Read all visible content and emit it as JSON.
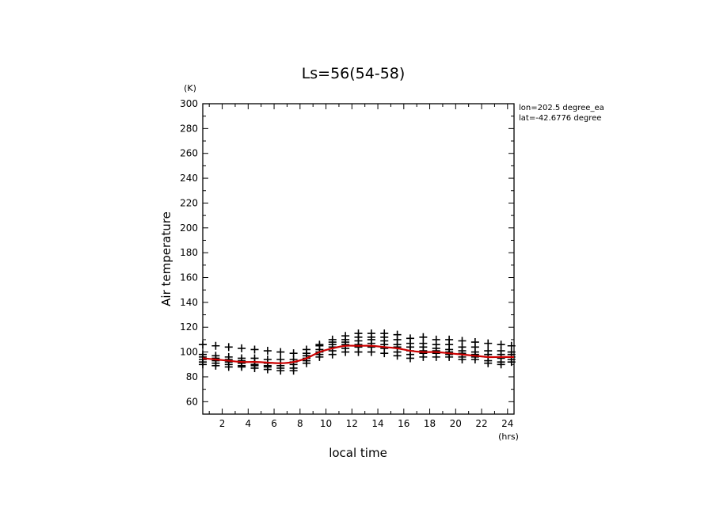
{
  "chart_data": {
    "type": "scatter",
    "title": "Ls=56(54-58)",
    "xlabel": "local time",
    "ylabel": "Air temperature",
    "x_unit": "(hrs)",
    "y_unit": "(K)",
    "xlim": [
      0.5,
      24.5
    ],
    "ylim": [
      50,
      300
    ],
    "x_ticks": [
      2,
      4,
      6,
      8,
      10,
      12,
      14,
      16,
      18,
      20,
      22,
      24
    ],
    "y_ticks": [
      60,
      80,
      100,
      120,
      140,
      160,
      180,
      200,
      220,
      240,
      260,
      280,
      300
    ],
    "grid": false,
    "annotations": [
      "lon=202.5 degree_ea",
      "lat=-42.6776 degree"
    ],
    "series": [
      {
        "marker": "+",
        "color": "#000000",
        "x": [
          0.5,
          0.5,
          0.5,
          0.5,
          0.5,
          0.5,
          1.5,
          1.5,
          1.5,
          1.5,
          1.5,
          1.5,
          2.5,
          2.5,
          2.5,
          2.5,
          2.5,
          2.5,
          3.5,
          3.5,
          3.5,
          3.5,
          3.5,
          3.5,
          4.5,
          4.5,
          4.5,
          4.5,
          4.5,
          4.5,
          5.5,
          5.5,
          5.5,
          5.5,
          5.5,
          5.5,
          6.5,
          6.5,
          6.5,
          6.5,
          6.5,
          6.5,
          7.5,
          7.5,
          7.5,
          7.5,
          7.5,
          7.5,
          8.5,
          8.5,
          8.5,
          8.5,
          8.5,
          8.5,
          9.5,
          9.5,
          9.5,
          9.5,
          9.5,
          9.5,
          10.5,
          10.5,
          10.5,
          10.5,
          10.5,
          10.5,
          11.5,
          11.5,
          11.5,
          11.5,
          11.5,
          11.5,
          12.5,
          12.5,
          12.5,
          12.5,
          12.5,
          12.5,
          13.5,
          13.5,
          13.5,
          13.5,
          13.5,
          13.5,
          14.5,
          14.5,
          14.5,
          14.5,
          14.5,
          14.5,
          15.5,
          15.5,
          15.5,
          15.5,
          15.5,
          15.5,
          16.5,
          16.5,
          16.5,
          16.5,
          16.5,
          16.5,
          17.5,
          17.5,
          17.5,
          17.5,
          17.5,
          17.5,
          18.5,
          18.5,
          18.5,
          18.5,
          18.5,
          18.5,
          19.5,
          19.5,
          19.5,
          19.5,
          19.5,
          19.5,
          20.5,
          20.5,
          20.5,
          20.5,
          20.5,
          20.5,
          21.5,
          21.5,
          21.5,
          21.5,
          21.5,
          21.5,
          22.5,
          22.5,
          22.5,
          22.5,
          22.5,
          22.5,
          23.5,
          23.5,
          23.5,
          23.5,
          23.5,
          23.5,
          24.3,
          24.3,
          24.3,
          24.3,
          24.3,
          24.3
        ],
        "y": [
          106,
          98,
          96,
          94,
          92,
          90,
          105,
          97,
          95,
          93,
          91,
          89,
          104,
          96,
          94,
          92,
          90,
          88,
          103,
          95,
          93,
          91,
          89,
          88,
          102,
          95,
          92,
          90,
          89,
          87,
          101,
          94,
          91,
          89,
          88,
          86,
          100,
          94,
          91,
          89,
          87,
          85,
          99,
          94,
          92,
          90,
          87,
          85,
          102,
          99,
          97,
          95,
          93,
          91,
          106,
          105,
          102,
          100,
          98,
          96,
          110,
          108,
          106,
          104,
          101,
          98,
          113,
          110,
          108,
          106,
          103,
          100,
          115,
          112,
          109,
          106,
          104,
          100,
          115,
          112,
          110,
          107,
          104,
          100,
          115,
          112,
          109,
          106,
          103,
          99,
          114,
          110,
          106,
          104,
          100,
          97,
          111,
          107,
          104,
          101,
          98,
          95,
          112,
          107,
          104,
          101,
          99,
          96,
          110,
          106,
          103,
          101,
          99,
          96,
          110,
          106,
          102,
          100,
          98,
          96,
          109,
          104,
          101,
          99,
          96,
          94,
          108,
          104,
          100,
          98,
          96,
          94,
          107,
          101,
          98,
          96,
          93,
          91,
          106,
          101,
          98,
          95,
          92,
          90,
          105,
          100,
          98,
          96,
          94,
          92
        ]
      },
      {
        "type": "line",
        "color": "#cc0000",
        "x": [
          0.5,
          1.5,
          2.5,
          3.5,
          4.5,
          5.5,
          6.5,
          7.5,
          8.5,
          9.5,
          10.5,
          11.5,
          12.5,
          13.5,
          14.5,
          15.5,
          16.5,
          17.5,
          18.5,
          19.5,
          20.5,
          21.5,
          22.5,
          23.5,
          24.5
        ],
        "y": [
          95,
          94,
          93,
          92,
          92,
          91.5,
          91,
          92,
          95,
          100,
          103,
          105,
          105,
          105,
          104,
          103,
          101,
          100,
          100,
          99,
          98,
          97,
          96,
          96,
          96
        ]
      }
    ]
  }
}
